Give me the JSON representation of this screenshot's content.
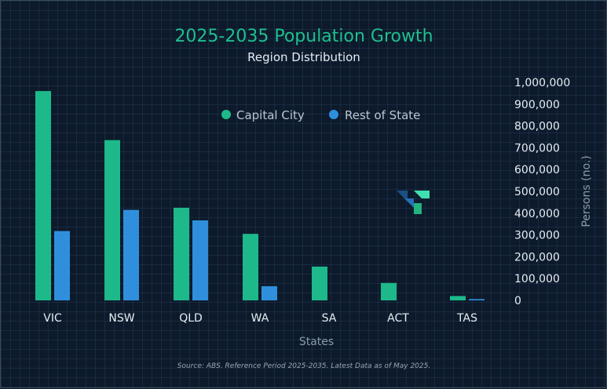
{
  "chart_data": {
    "type": "bar",
    "title": "2025-2035 Population Growth",
    "subtitle": "Region Distribution",
    "xlabel": "States",
    "ylabel": "Persons (no.)",
    "categories": [
      "VIC",
      "NSW",
      "QLD",
      "WA",
      "SA",
      "ACT",
      "TAS"
    ],
    "series": [
      {
        "name": "Capital City",
        "color": "#1db98a",
        "values": [
          960000,
          735000,
          425000,
          305000,
          155000,
          80000,
          20000
        ]
      },
      {
        "name": "Rest of State",
        "color": "#2f8fdc",
        "values": [
          318000,
          415000,
          367000,
          65000,
          0,
          0,
          6000
        ]
      }
    ],
    "ylim": [
      0,
      1000000
    ],
    "yticks": [
      "0",
      "100,000",
      "200,000",
      "300,000",
      "400,000",
      "500,000",
      "600,000",
      "700,000",
      "800,000",
      "900,000",
      "1,000,000"
    ],
    "legend_position": "top-center",
    "axis_side": "right",
    "grid": true,
    "source": "Source: ABS. Reference Period 2025-2035. Latest Data as of May 2025."
  },
  "logo": {
    "name": "brand-logo-icon"
  }
}
